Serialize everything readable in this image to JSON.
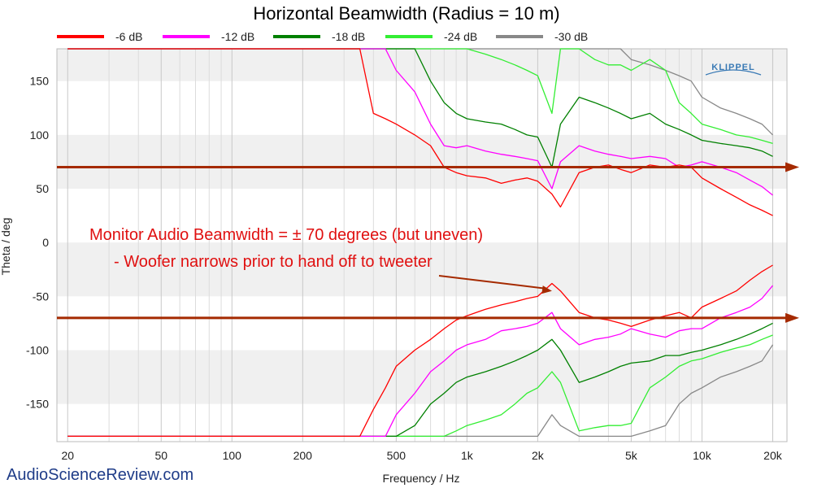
{
  "chart_data": {
    "type": "line",
    "title": "Horizontal Beamwidth (Radius = 10 m)",
    "xlabel": "Frequency / Hz",
    "ylabel": "Theta / deg",
    "x_scale": "log",
    "xlim": [
      18,
      23000
    ],
    "ylim": [
      -185,
      180
    ],
    "x_ticks": [
      20,
      50,
      100,
      200,
      500,
      1000,
      2000,
      5000,
      10000,
      20000
    ],
    "x_tick_labels": [
      "20",
      "50",
      "100",
      "200",
      "500",
      "1k",
      "2k",
      "5k",
      "10k",
      "20k"
    ],
    "y_ticks": [
      150,
      100,
      50,
      0,
      -50,
      -100,
      -150
    ],
    "y_tick_labels": [
      "150",
      "100",
      "50",
      "0",
      "-50",
      "-100",
      "-150"
    ],
    "grid": true,
    "legend_position": "top",
    "logo_text": "KLIPPEL",
    "x": [
      350,
      400,
      450,
      500,
      600,
      700,
      800,
      900,
      1000,
      1200,
      1400,
      1600,
      1800,
      2000,
      2300,
      2500,
      3000,
      3500,
      4000,
      4500,
      5000,
      6000,
      7000,
      8000,
      9000,
      10000,
      12000,
      14000,
      16000,
      18000,
      20000
    ],
    "series": [
      {
        "name": "-6 dB",
        "color": "#ff0000",
        "upper": [
          180,
          120,
          115,
          110,
          100,
          90,
          70,
          65,
          62,
          60,
          55,
          58,
          60,
          57,
          45,
          33,
          65,
          70,
          72,
          68,
          65,
          72,
          70,
          72,
          70,
          60,
          50,
          42,
          35,
          30,
          25
        ],
        "lower": [
          -180,
          -155,
          -135,
          -115,
          -100,
          -90,
          -80,
          -72,
          -68,
          -62,
          -58,
          -55,
          -52,
          -50,
          -38,
          -45,
          -65,
          -70,
          -72,
          -75,
          -78,
          -72,
          -68,
          -65,
          -70,
          -60,
          -52,
          -45,
          -35,
          -27,
          -21
        ]
      },
      {
        "name": "-12 dB",
        "color": "#ff00ff",
        "upper": [
          180,
          180,
          180,
          160,
          140,
          110,
          90,
          88,
          90,
          85,
          82,
          80,
          78,
          76,
          50,
          75,
          90,
          85,
          82,
          80,
          78,
          80,
          78,
          70,
          72,
          75,
          70,
          65,
          58,
          52,
          44
        ],
        "lower": [
          -180,
          -180,
          -180,
          -160,
          -140,
          -120,
          -110,
          -100,
          -95,
          -90,
          -82,
          -80,
          -78,
          -75,
          -65,
          -80,
          -95,
          -90,
          -88,
          -85,
          -80,
          -85,
          -88,
          -82,
          -80,
          -80,
          -70,
          -65,
          -60,
          -52,
          -40
        ]
      },
      {
        "name": "-18 dB",
        "color": "#008000",
        "upper": [
          180,
          180,
          180,
          180,
          180,
          150,
          130,
          120,
          115,
          112,
          110,
          105,
          100,
          98,
          70,
          110,
          135,
          130,
          125,
          120,
          115,
          120,
          110,
          105,
          100,
          95,
          92,
          90,
          88,
          85,
          80
        ],
        "lower": [
          -180,
          -180,
          -180,
          -180,
          -170,
          -150,
          -140,
          -130,
          -125,
          -120,
          -115,
          -110,
          -105,
          -100,
          -90,
          -100,
          -130,
          -125,
          -120,
          -115,
          -112,
          -110,
          -105,
          -105,
          -102,
          -100,
          -95,
          -90,
          -85,
          -80,
          -75
        ]
      },
      {
        "name": "-24 dB",
        "color": "#33ee33",
        "upper": [
          180,
          180,
          180,
          180,
          180,
          180,
          180,
          180,
          180,
          175,
          170,
          165,
          160,
          155,
          120,
          180,
          180,
          170,
          165,
          165,
          160,
          170,
          160,
          130,
          120,
          110,
          105,
          100,
          98,
          95,
          92
        ],
        "lower": [
          -180,
          -180,
          -180,
          -180,
          -180,
          -180,
          -180,
          -175,
          -170,
          -165,
          -160,
          -150,
          -140,
          -135,
          -120,
          -130,
          -175,
          -172,
          -170,
          -170,
          -168,
          -135,
          -125,
          -115,
          -110,
          -108,
          -102,
          -98,
          -95,
          -90,
          -86
        ]
      },
      {
        "name": "-30 dB",
        "color": "#888888",
        "upper": [
          180,
          180,
          180,
          180,
          180,
          180,
          180,
          180,
          180,
          180,
          180,
          180,
          180,
          180,
          180,
          180,
          180,
          180,
          180,
          180,
          170,
          165,
          160,
          155,
          150,
          135,
          125,
          120,
          115,
          110,
          100
        ],
        "lower": [
          -180,
          -180,
          -180,
          -180,
          -180,
          -180,
          -180,
          -180,
          -180,
          -180,
          -180,
          -180,
          -180,
          -180,
          -160,
          -170,
          -180,
          -180,
          -180,
          -180,
          -180,
          -175,
          -170,
          -150,
          -140,
          -135,
          -125,
          -120,
          -115,
          -110,
          -95
        ]
      }
    ],
    "reference_lines": [
      {
        "y": 70,
        "color": "#a52a00"
      },
      {
        "y": -70,
        "color": "#a52a00"
      }
    ],
    "annotations": [
      {
        "text": "Monitor Audio Beamwidth = ± 70 degrees (but uneven)",
        "color": "#e01010"
      },
      {
        "text": "- Woofer narrows prior to hand off to tweeter",
        "color": "#e01010",
        "arrow_to": {
          "x": 2300,
          "y": -45
        }
      }
    ],
    "watermark": "AudioScienceReview.com"
  }
}
